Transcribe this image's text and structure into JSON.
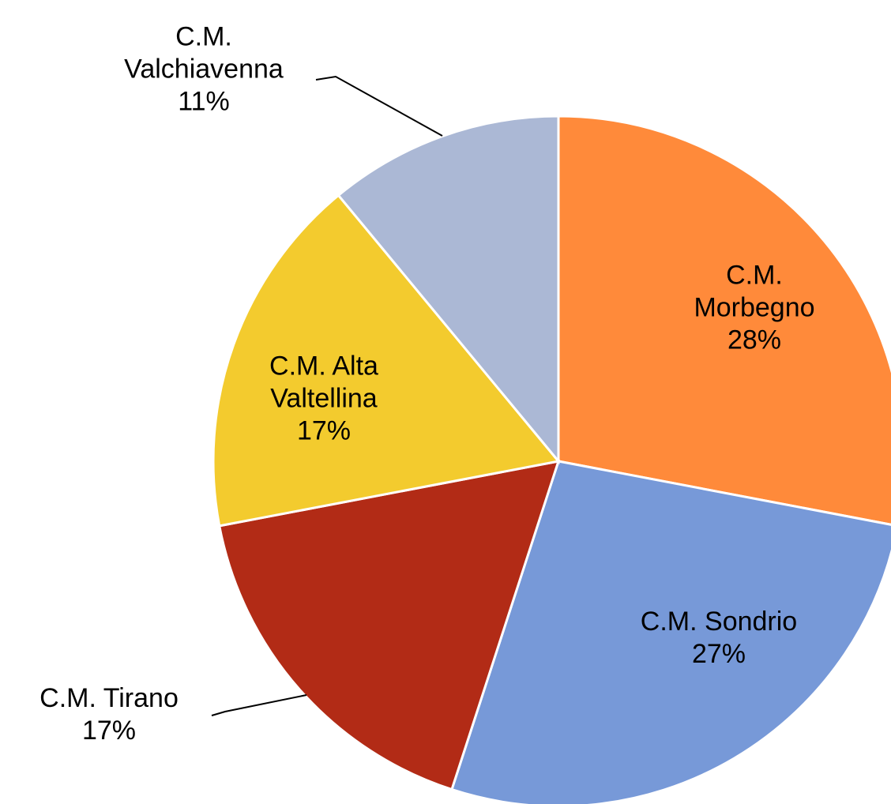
{
  "chart_data": {
    "type": "pie",
    "categories": [
      "C.M. Morbegno",
      "C.M. Sondrio",
      "C.M. Tirano",
      "C.M. Alta Valtellina",
      "C.M. Valchiavenna"
    ],
    "values": [
      28,
      27,
      17,
      17,
      11
    ],
    "value_labels": [
      "28%",
      "27%",
      "17%",
      "17%",
      "11%"
    ],
    "colors": [
      "#ff8a3a",
      "#7799d8",
      "#b22b16",
      "#f3cb2e",
      "#abb8d5"
    ]
  }
}
